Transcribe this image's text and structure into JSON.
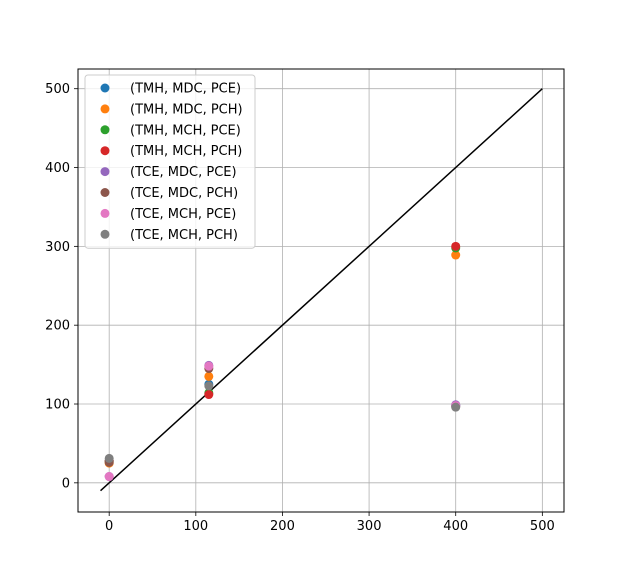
{
  "chart_data": {
    "type": "scatter",
    "title": "",
    "xlabel": "",
    "ylabel": "",
    "xlim": [
      -36,
      525
    ],
    "ylim": [
      -37,
      525
    ],
    "xticks": [
      0,
      100,
      200,
      300,
      400,
      500
    ],
    "yticks": [
      0,
      100,
      200,
      300,
      400,
      500
    ],
    "grid": true,
    "legend_position": "top-left",
    "reference_line": {
      "x": [
        -10,
        500
      ],
      "y": [
        -10,
        500
      ],
      "color": "#000000"
    },
    "series": [
      {
        "name": "(TMH, MDC, PCE)",
        "color": "#1f77b4",
        "points": [
          [
            0,
            28
          ],
          [
            115,
            125
          ],
          [
            400,
            98
          ]
        ]
      },
      {
        "name": "(TMH, MDC, PCH)",
        "color": "#ff7f0e",
        "points": [
          [
            0,
            25
          ],
          [
            115,
            135
          ],
          [
            400,
            289
          ]
        ]
      },
      {
        "name": "(TMH, MCH, PCE)",
        "color": "#2ca02c",
        "points": [
          [
            0,
            27
          ],
          [
            115,
            114
          ],
          [
            400,
            298
          ]
        ]
      },
      {
        "name": "(TMH, MCH, PCH)",
        "color": "#d62728",
        "points": [
          [
            0,
            28
          ],
          [
            115,
            112
          ],
          [
            400,
            300
          ]
        ]
      },
      {
        "name": "(TCE, MDC, PCE)",
        "color": "#9467bd",
        "points": [
          [
            0,
            8
          ],
          [
            115,
            149
          ],
          [
            400,
            99
          ]
        ]
      },
      {
        "name": "(TCE, MDC, PCH)",
        "color": "#8c564b",
        "points": [
          [
            0,
            26
          ],
          [
            115,
            145
          ],
          [
            400,
            97
          ]
        ]
      },
      {
        "name": "(TCE, MCH, PCE)",
        "color": "#e377c2",
        "points": [
          [
            0,
            8
          ],
          [
            115,
            148
          ],
          [
            400,
            98
          ]
        ]
      },
      {
        "name": "(TCE, MCH, PCH)",
        "color": "#7f7f7f",
        "points": [
          [
            0,
            31
          ],
          [
            115,
            123
          ],
          [
            400,
            96
          ]
        ]
      }
    ]
  }
}
